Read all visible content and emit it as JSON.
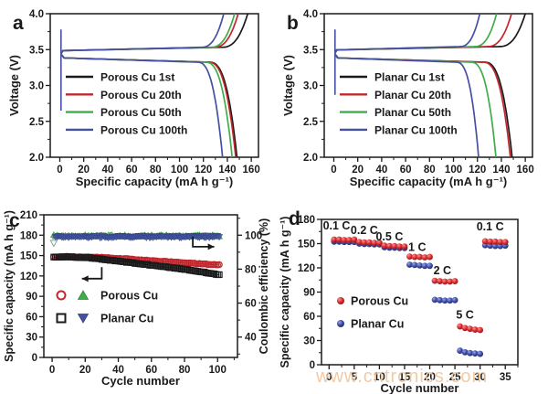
{
  "watermark": {
    "text": "www.cntronics.com",
    "color": "#f2c69c"
  },
  "colors": {
    "black": "#1a1a1a",
    "red": "#c1272d",
    "green": "#3dae49",
    "blue": "#4550a5",
    "scatter_red": "#d42a2e",
    "scatter_blue": "#3c4ba5"
  },
  "chart_data": [
    {
      "panel": "a",
      "type": "line",
      "xlabel": "Specific capacity (mA h g⁻¹)",
      "ylabel": "Voltage (V)",
      "xlim": [
        -8,
        166
      ],
      "xticks": [
        0,
        20,
        40,
        60,
        80,
        100,
        120,
        140,
        160
      ],
      "ylim": [
        2.0,
        4.0
      ],
      "yticks": [
        2.0,
        2.5,
        3.0,
        3.5,
        4.0
      ],
      "charge_plateau_V": 3.49,
      "discharge_plateau_V": 3.37,
      "activation_spike": {
        "x": 1,
        "v_min": 2.65,
        "v_max": 3.78
      },
      "series": [
        {
          "name": "Porous Cu  1st",
          "color_key": "black",
          "charge_capacity": 157,
          "discharge_capacity": 148
        },
        {
          "name": "Porous Cu  20th",
          "color_key": "red",
          "charge_capacity": 149,
          "discharge_capacity": 147
        },
        {
          "name": "Porous Cu  50th",
          "color_key": "green",
          "charge_capacity": 146,
          "discharge_capacity": 144
        },
        {
          "name": "Porous Cu  100th",
          "color_key": "blue",
          "charge_capacity": 137,
          "discharge_capacity": 136
        }
      ]
    },
    {
      "panel": "b",
      "type": "line",
      "xlabel": "Specific capacity (mA h g⁻¹)",
      "ylabel": "Voltage (V)",
      "xlim": [
        -8,
        166
      ],
      "xticks": [
        0,
        20,
        40,
        60,
        80,
        100,
        120,
        140,
        160
      ],
      "ylim": [
        2.0,
        4.0
      ],
      "yticks": [
        2.0,
        2.5,
        3.0,
        3.5,
        4.0
      ],
      "charge_plateau_V": 3.5,
      "discharge_plateau_V": 3.37,
      "activation_spike": {
        "x": 1,
        "v_min": 2.87,
        "v_max": 3.78
      },
      "series": [
        {
          "name": "Planar Cu  1st",
          "color_key": "black",
          "charge_capacity": 160,
          "discharge_capacity": 149
        },
        {
          "name": "Planar Cu  20th",
          "color_key": "red",
          "charge_capacity": 148.5,
          "discharge_capacity": 147.5
        },
        {
          "name": "Planar Cu  50th",
          "color_key": "green",
          "charge_capacity": 136,
          "discharge_capacity": 135.5
        },
        {
          "name": "Planar Cu  100th",
          "color_key": "blue",
          "charge_capacity": 122,
          "discharge_capacity": 121
        }
      ]
    },
    {
      "panel": "c",
      "type": "scatter",
      "xlabel": "Cycle number",
      "ylabel_left": "Specific capacity (mA h g⁻¹)",
      "ylabel_right": "Coulombic efficiency (%)",
      "xlim": [
        -5,
        112
      ],
      "xticks": [
        0,
        20,
        40,
        60,
        80,
        100
      ],
      "ylim_left": [
        0,
        210
      ],
      "yticks_left": [
        0,
        30,
        60,
        90,
        120,
        150,
        180,
        210
      ],
      "ylim_right": [
        28,
        112
      ],
      "yticks_right": [
        40,
        60,
        80,
        100
      ],
      "capacity_series": [
        {
          "name": "Porous Cu",
          "marker": "open-circle",
          "color_key": "red",
          "cycles_every5_from1": [
            148,
            148.5,
            148.5,
            148,
            148,
            147.5,
            147,
            146.5,
            145.5,
            145,
            144,
            143,
            142.5,
            141.5,
            141,
            140,
            139,
            138.5,
            137.5,
            137,
            136.5
          ]
        },
        {
          "name": "Planar Cu",
          "marker": "open-square",
          "color_key": "black",
          "cycles_every5_from1": [
            147.5,
            148,
            148,
            147.5,
            147,
            146,
            144.5,
            143,
            141.5,
            140,
            138.5,
            137,
            135.5,
            134,
            132.5,
            131,
            129.5,
            127.5,
            126,
            123.5,
            121.5
          ]
        }
      ],
      "efficiency_series": [
        {
          "name": "Porous Cu",
          "marker": "triangle-up",
          "color_key": "green",
          "approx_value": 99.5
        },
        {
          "name": "Planar Cu",
          "marker": "triangle-down",
          "color_key": "blue",
          "approx_value": 99.2,
          "first_cycle_value": 95.5
        }
      ],
      "legend": [
        {
          "label": "Porous Cu"
        },
        {
          "label": "Planar Cu"
        }
      ],
      "arrows": [
        {
          "dir": "left",
          "points": [
            [
              30,
              133
            ],
            [
              30,
              116
            ],
            [
              18,
              116
            ]
          ]
        },
        {
          "dir": "right",
          "points": [
            [
              85,
              178
            ],
            [
              85,
              163
            ],
            [
              98,
              163
            ]
          ]
        }
      ]
    },
    {
      "panel": "d",
      "type": "scatter",
      "xlabel": "Cycle number",
      "ylabel": "Specific capacity (mA h g⁻¹)",
      "xlim": [
        -1.5,
        37.5
      ],
      "xticks": [
        0,
        5,
        10,
        15,
        20,
        25,
        30,
        35
      ],
      "ylim": [
        0,
        180
      ],
      "yticks": [
        0,
        30,
        60,
        90,
        120,
        150,
        180
      ],
      "series_names": {
        "porous": "Porous Cu",
        "planar": "Planar Cu"
      },
      "rate_groups": [
        {
          "rate": "0.1 C",
          "start_cycle": 1,
          "porous": [
            155,
            155,
            154.5,
            154.5,
            155
          ],
          "planar": [
            152.5,
            152.5,
            152,
            152,
            152
          ],
          "label_at": [
            1.5,
            167.5
          ]
        },
        {
          "rate": "0.2 C",
          "start_cycle": 6,
          "porous": [
            152,
            151.5,
            151.5,
            151,
            151
          ],
          "planar": [
            150,
            149.5,
            149.5,
            149,
            149
          ],
          "label_at": [
            7,
            162
          ]
        },
        {
          "rate": "0.5 C",
          "start_cycle": 11,
          "porous": [
            147.5,
            147,
            147,
            146.5,
            146.5
          ],
          "planar": [
            145.5,
            145,
            145,
            144.5,
            144.5
          ],
          "label_at": [
            12,
            154
          ]
        },
        {
          "rate": "1 C",
          "start_cycle": 16,
          "porous": [
            134,
            133.5,
            133.5,
            133,
            133.5
          ],
          "planar": [
            124,
            123.5,
            123,
            122.5,
            122.5
          ],
          "label_at": [
            17.5,
            141
          ]
        },
        {
          "rate": "2 C",
          "start_cycle": 21,
          "porous": [
            104,
            103.5,
            103,
            103,
            103.5
          ],
          "planar": [
            80.5,
            80,
            79.5,
            79.5,
            80
          ],
          "label_at": [
            22.5,
            112
          ]
        },
        {
          "rate": "5 C",
          "start_cycle": 26,
          "porous": [
            47.5,
            45.5,
            44.5,
            43.5,
            43
          ],
          "planar": [
            17.5,
            15.5,
            14.5,
            14,
            13.5
          ],
          "label_at": [
            27,
            57
          ]
        },
        {
          "rate": "0.1 C",
          "start_cycle": 31,
          "porous": [
            153,
            152.5,
            152.5,
            152,
            152
          ],
          "planar": [
            148,
            147.5,
            147,
            147,
            147.5
          ],
          "label_at": [
            32,
            166.5
          ]
        }
      ],
      "legend": [
        {
          "label": "Porous Cu",
          "color_key": "scatter_red"
        },
        {
          "label": "Planar Cu",
          "color_key": "scatter_blue"
        }
      ]
    }
  ]
}
